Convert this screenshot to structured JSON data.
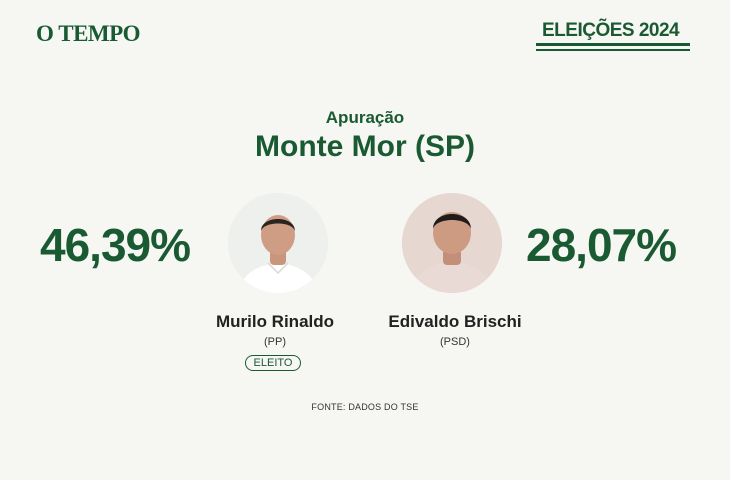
{
  "header": {
    "logo": "O TEMPO",
    "badge": "ELEIÇÕES 2024"
  },
  "subtitle": "Apuração",
  "title": "Monte Mor (SP)",
  "candidates": [
    {
      "name": "Murilo Rinaldo",
      "party": "(PP)",
      "percent": "46,39%",
      "status": "ELEITO"
    },
    {
      "name": "Edivaldo Brischi",
      "party": "(PSD)",
      "percent": "28,07%"
    }
  ],
  "source": "FONTE: DADOS DO TSE",
  "colors": {
    "accent": "#1a5a33",
    "background": "#f6f6f2"
  }
}
